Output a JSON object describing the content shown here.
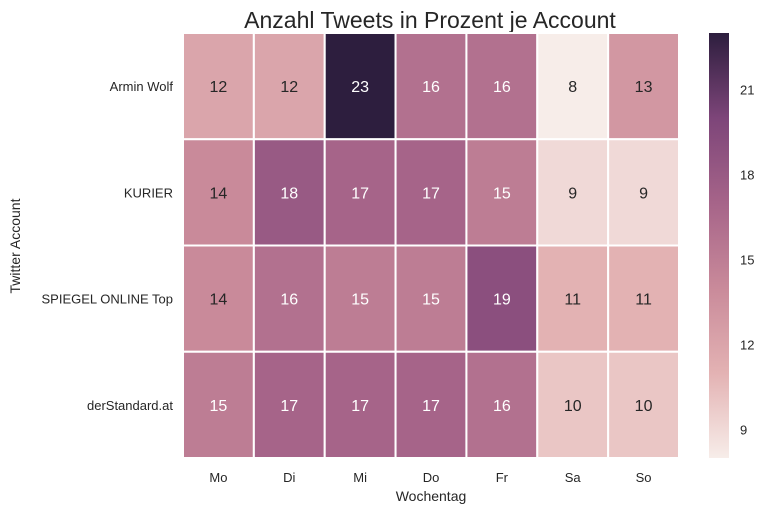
{
  "chart_data": {
    "type": "heatmap",
    "title": "Anzahl Tweets in Prozent je Account",
    "xlabel": "Wochentag",
    "ylabel": "Twitter Account",
    "x_categories": [
      "Mo",
      "Di",
      "Mi",
      "Do",
      "Fr",
      "Sa",
      "So"
    ],
    "y_categories": [
      "Armin Wolf",
      "KURIER",
      "SPIEGEL ONLINE Top",
      "derStandard.at"
    ],
    "values": [
      [
        12,
        12,
        23,
        16,
        16,
        8,
        13
      ],
      [
        14,
        18,
        17,
        17,
        15,
        9,
        9
      ],
      [
        14,
        16,
        15,
        15,
        19,
        11,
        11
      ],
      [
        15,
        17,
        17,
        17,
        16,
        10,
        10
      ]
    ],
    "colorbar": {
      "min": 8,
      "max": 23,
      "ticks": [
        9,
        12,
        15,
        18,
        21
      ]
    },
    "colors": {
      "low": "#f7ede9",
      "mid1": "#e3b2b3",
      "mid2": "#c98a9a",
      "mid3": "#a66489",
      "mid4": "#7d4579",
      "high": "#2d1e3e"
    },
    "cell_separator_color": "#ffffff",
    "annotations": true
  }
}
